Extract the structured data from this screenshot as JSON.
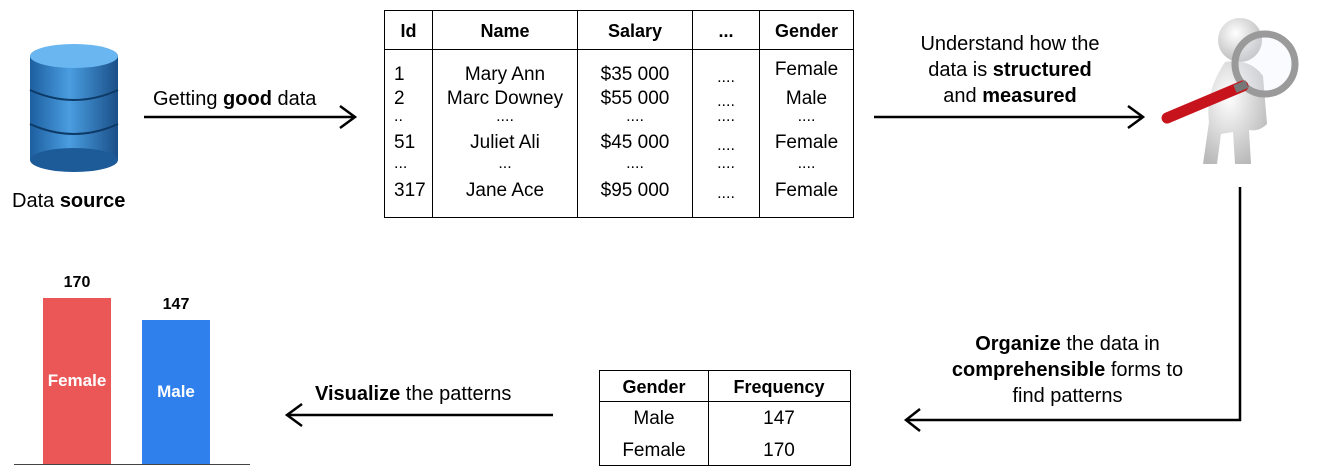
{
  "source": {
    "label_pre": "Data ",
    "label_bold": "source"
  },
  "step1": {
    "pre": "Getting ",
    "bold": "good",
    "post": " data"
  },
  "table": {
    "headers": [
      "Id",
      "Name",
      "Salary",
      "...",
      "Gender"
    ],
    "rows": [
      [
        "1",
        "Mary Ann",
        "$35 000",
        "....",
        "Female"
      ],
      [
        "2",
        "Marc Downey",
        "$55 000",
        "....",
        "Male"
      ],
      [
        "..",
        "....",
        "....",
        "....",
        "...."
      ],
      [
        "51",
        "Juliet Ali",
        "$45 000",
        "....",
        "Female"
      ],
      [
        "...",
        "...",
        "....",
        "....",
        "...."
      ],
      [
        "317",
        "Jane Ace",
        "$95 000",
        "....",
        "Female"
      ]
    ]
  },
  "step2": {
    "l1": "Understand how the",
    "l2_pre": "data is ",
    "l2_bold": "structured",
    "l3_pre": "and ",
    "l3_bold": "measured"
  },
  "step3": {
    "l1_bold": "Organize",
    "l1_post": " the data in",
    "l2_bold": "comprehensible",
    "l2_post": " forms to",
    "l3": "find patterns"
  },
  "freq": {
    "headers": [
      "Gender",
      "Frequency"
    ],
    "rows": [
      [
        "Male",
        "147"
      ],
      [
        "Female",
        "170"
      ]
    ]
  },
  "step4": {
    "bold": "Visualize",
    "post": " the patterns"
  },
  "chart_data": {
    "type": "bar",
    "categories": [
      "Female",
      "Male"
    ],
    "values": [
      170,
      147
    ],
    "colors": [
      "#eb5757",
      "#2f80ed"
    ],
    "title": "",
    "xlabel": "",
    "ylabel": ""
  }
}
